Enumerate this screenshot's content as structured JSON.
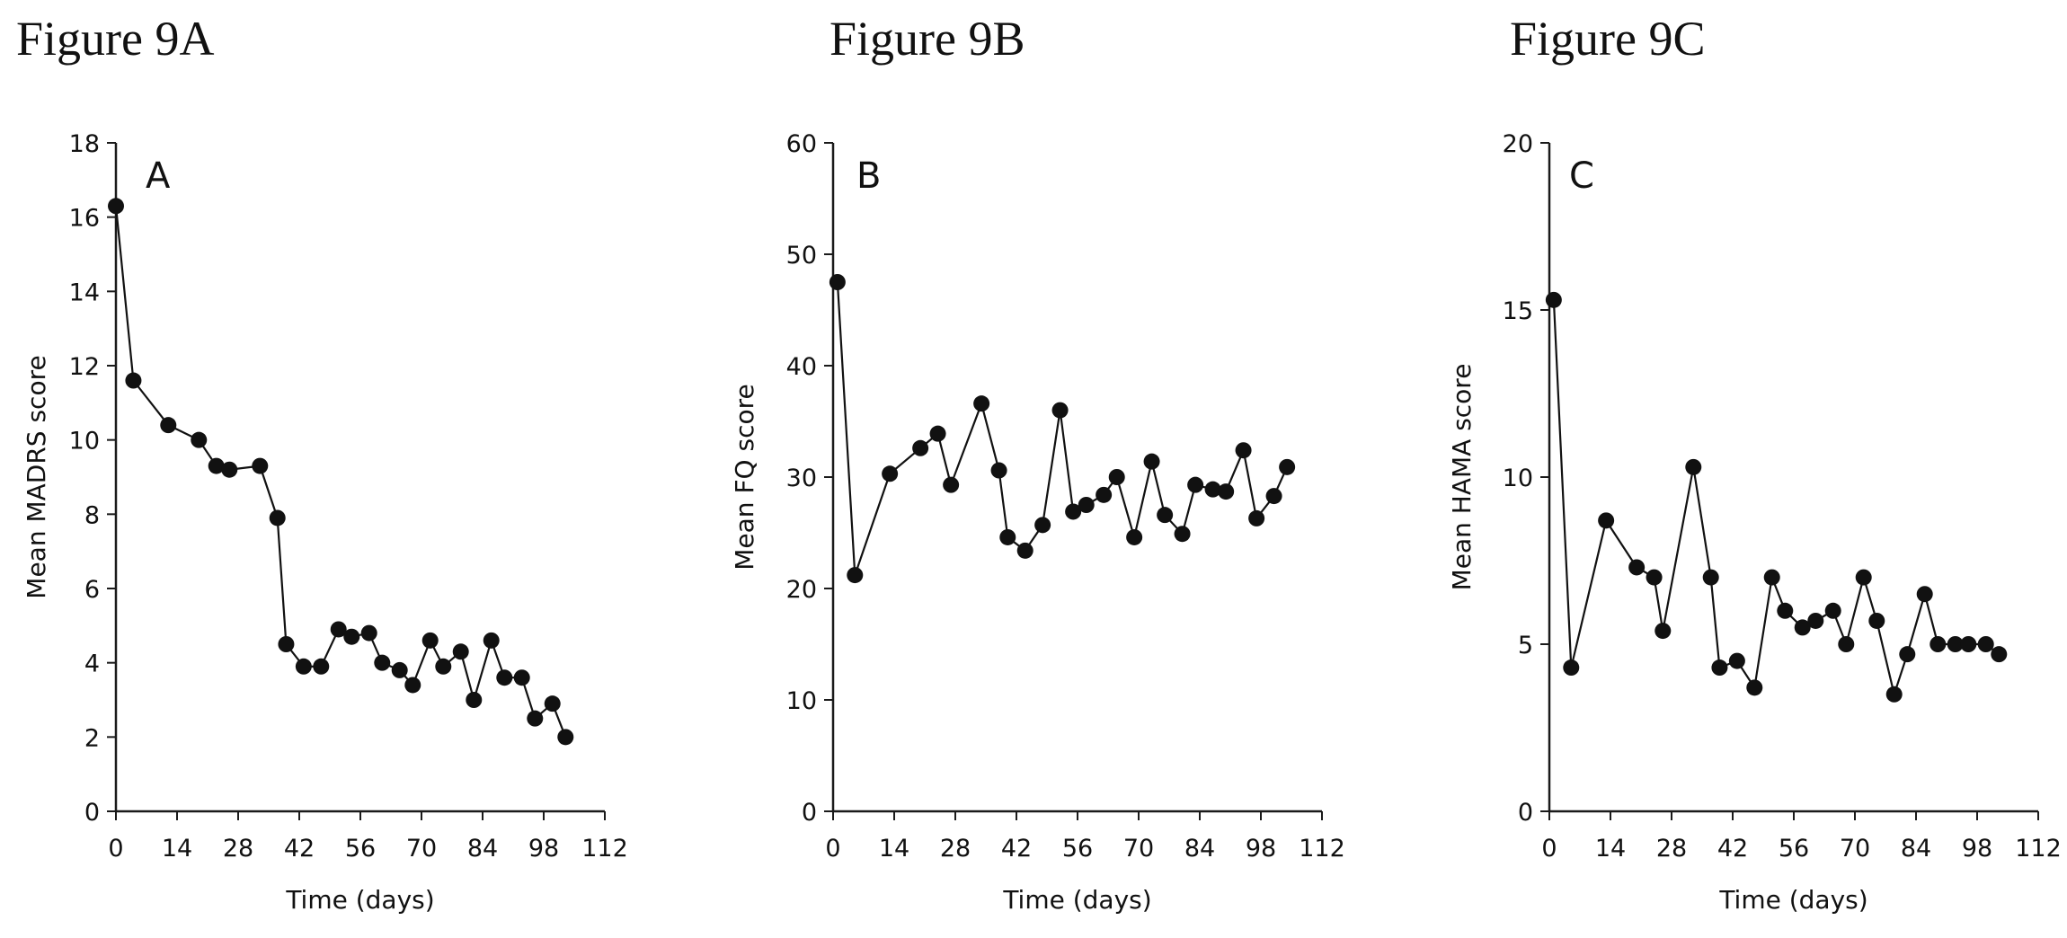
{
  "chart_data": [
    {
      "type": "line",
      "figure_title": "Figure 9A",
      "panel_letter": "A",
      "xlabel": "Time (days)",
      "ylabel": "Mean MADRS score",
      "xlim": [
        0,
        112
      ],
      "ylim": [
        0,
        18
      ],
      "xticks": [
        0,
        14,
        28,
        42,
        56,
        70,
        84,
        98,
        112
      ],
      "yticks": [
        0,
        2,
        4,
        6,
        8,
        10,
        12,
        14,
        16,
        18
      ],
      "x": [
        0,
        4,
        12,
        19,
        23,
        26,
        33,
        37,
        39,
        43,
        47,
        51,
        54,
        58,
        61,
        65,
        68,
        72,
        75,
        79,
        82,
        86,
        89,
        93,
        96,
        100,
        103
      ],
      "y": [
        16.3,
        11.6,
        10.4,
        10.0,
        9.3,
        9.2,
        9.3,
        7.9,
        4.5,
        3.9,
        3.9,
        4.9,
        4.7,
        4.8,
        4.0,
        3.8,
        3.4,
        4.6,
        3.9,
        4.3,
        3.0,
        4.6,
        3.6,
        3.6,
        2.5,
        2.9,
        2.0
      ]
    },
    {
      "type": "line",
      "figure_title": "Figure 9B",
      "panel_letter": "B",
      "xlabel": "Time (days)",
      "ylabel": "Mean FQ score",
      "xlim": [
        0,
        112
      ],
      "ylim": [
        0,
        60
      ],
      "xticks": [
        0,
        14,
        28,
        42,
        56,
        70,
        84,
        98,
        112
      ],
      "yticks": [
        0,
        10,
        20,
        30,
        40,
        50,
        60
      ],
      "x": [
        1,
        5,
        13,
        20,
        24,
        27,
        34,
        38,
        40,
        44,
        48,
        52,
        55,
        58,
        62,
        65,
        69,
        73,
        76,
        80,
        83,
        87,
        90,
        94,
        97,
        101,
        104
      ],
      "y": [
        47.5,
        21.2,
        30.3,
        32.6,
        33.9,
        29.3,
        36.6,
        30.6,
        24.6,
        23.4,
        25.7,
        36.0,
        26.9,
        27.5,
        28.4,
        30.0,
        24.6,
        31.4,
        26.6,
        24.9,
        29.3,
        28.9,
        28.7,
        32.4,
        26.3,
        28.3,
        30.9
      ]
    },
    {
      "type": "line",
      "figure_title": "Figure 9C",
      "panel_letter": "C",
      "xlabel": "Time (days)",
      "ylabel": "Mean HAMA score",
      "xlim": [
        0,
        112
      ],
      "ylim": [
        0,
        20
      ],
      "xticks": [
        0,
        14,
        28,
        42,
        56,
        70,
        84,
        98,
        112
      ],
      "yticks": [
        0,
        5,
        10,
        15,
        20
      ],
      "x": [
        1,
        5,
        13,
        20,
        24,
        26,
        33,
        37,
        39,
        43,
        47,
        51,
        54,
        58,
        61,
        65,
        68,
        72,
        75,
        79,
        82,
        86,
        89,
        93,
        96,
        100,
        103
      ],
      "y": [
        15.3,
        4.3,
        8.7,
        7.3,
        7.0,
        5.4,
        10.3,
        7.0,
        4.3,
        4.5,
        3.7,
        7.0,
        6.0,
        5.5,
        5.7,
        6.0,
        5.0,
        7.0,
        5.7,
        3.5,
        4.7,
        6.5,
        5.0,
        5.0,
        5.0,
        5.0,
        4.7
      ]
    }
  ]
}
